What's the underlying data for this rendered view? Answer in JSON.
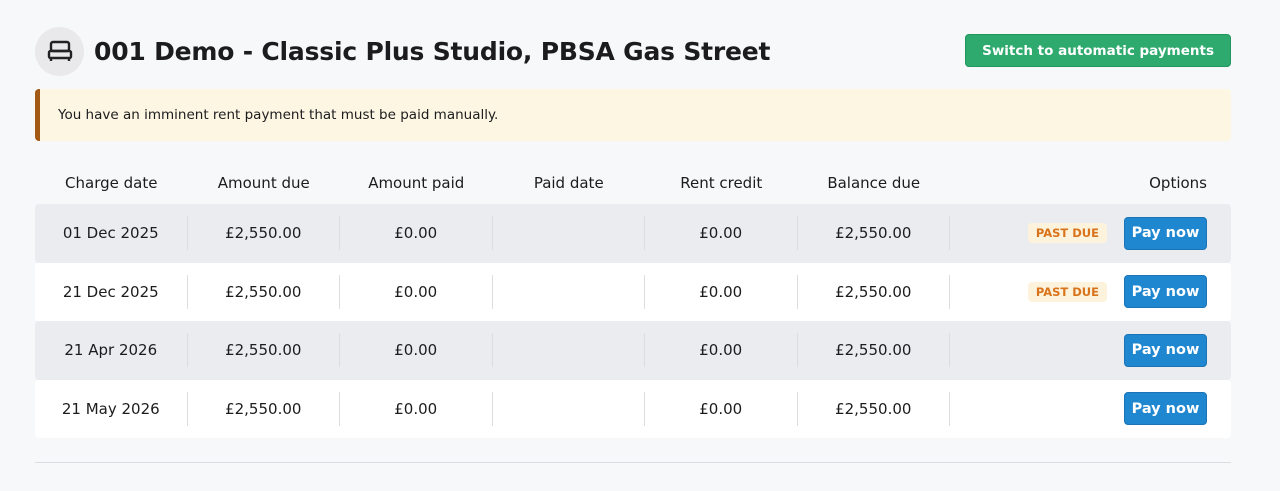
{
  "header": {
    "title": "001 Demo - Classic Plus Studio, PBSA Gas Street",
    "icon": "bed-icon",
    "switch_label": "Switch to automatic payments"
  },
  "alert": {
    "text": "You have an imminent rent payment that must be paid manually."
  },
  "table": {
    "columns": [
      "Charge date",
      "Amount due",
      "Amount paid",
      "Paid date",
      "Rent credit",
      "Balance due",
      "Options"
    ],
    "rows": [
      {
        "charge_date": "01 Dec 2025",
        "amount_due": "£2,550.00",
        "amount_paid": "£0.00",
        "paid_date": "",
        "rent_credit": "£0.00",
        "balance_due": "£2,550.00",
        "badge": "PAST DUE",
        "action": "Pay now"
      },
      {
        "charge_date": "21 Dec 2025",
        "amount_due": "£2,550.00",
        "amount_paid": "£0.00",
        "paid_date": "",
        "rent_credit": "£0.00",
        "balance_due": "£2,550.00",
        "badge": "PAST DUE",
        "action": "Pay now"
      },
      {
        "charge_date": "21 Apr 2026",
        "amount_due": "£2,550.00",
        "amount_paid": "£0.00",
        "paid_date": "",
        "rent_credit": "£0.00",
        "balance_due": "£2,550.00",
        "badge": null,
        "action": "Pay now"
      },
      {
        "charge_date": "21 May 2026",
        "amount_due": "£2,550.00",
        "amount_paid": "£0.00",
        "paid_date": "",
        "rent_credit": "£0.00",
        "balance_due": "£2,550.00",
        "badge": null,
        "action": "Pay now"
      }
    ]
  },
  "colors": {
    "success": "#2eaa6e",
    "primary": "#1f86d0",
    "warning_bg": "#fdf6e3",
    "warning_border": "#a35a14",
    "badge_text": "#d9731b"
  }
}
